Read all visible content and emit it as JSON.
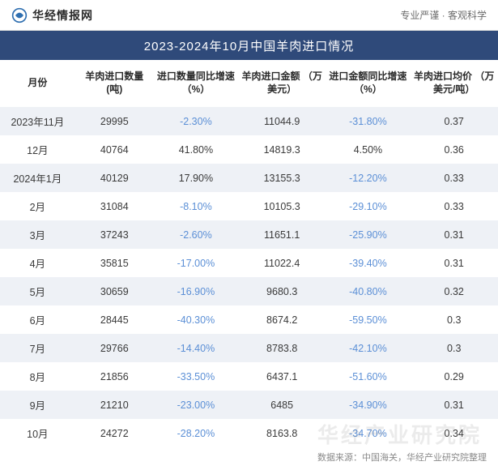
{
  "header": {
    "brand": "华经情报网",
    "tagline": "专业严谨 · 客观科学",
    "logo_colors": {
      "outer": "#2f6fb0",
      "inner": "#2f6fb0"
    }
  },
  "title": "2023-2024年10月中国羊肉进口情况",
  "columns": [
    "月份",
    "羊肉进口数量\n(吨)",
    "进口数量同比增速\n（%）",
    "羊肉进口金额\n（万美元）",
    "进口金额同比增速\n（%）",
    "羊肉进口均价\n（万美元/吨）"
  ],
  "rows": [
    {
      "month": "2023年11月",
      "qty": "29995",
      "qty_yoy": "-2.30%",
      "qty_yoy_neg": true,
      "amt": "11044.9",
      "amt_yoy": "-31.80%",
      "amt_yoy_neg": true,
      "price": "0.37"
    },
    {
      "month": "12月",
      "qty": "40764",
      "qty_yoy": "41.80%",
      "qty_yoy_neg": false,
      "amt": "14819.3",
      "amt_yoy": "4.50%",
      "amt_yoy_neg": false,
      "price": "0.36"
    },
    {
      "month": "2024年1月",
      "qty": "40129",
      "qty_yoy": "17.90%",
      "qty_yoy_neg": false,
      "amt": "13155.3",
      "amt_yoy": "-12.20%",
      "amt_yoy_neg": true,
      "price": "0.33"
    },
    {
      "month": "2月",
      "qty": "31084",
      "qty_yoy": "-8.10%",
      "qty_yoy_neg": true,
      "amt": "10105.3",
      "amt_yoy": "-29.10%",
      "amt_yoy_neg": true,
      "price": "0.33"
    },
    {
      "month": "3月",
      "qty": "37243",
      "qty_yoy": "-2.60%",
      "qty_yoy_neg": true,
      "amt": "11651.1",
      "amt_yoy": "-25.90%",
      "amt_yoy_neg": true,
      "price": "0.31"
    },
    {
      "month": "4月",
      "qty": "35815",
      "qty_yoy": "-17.00%",
      "qty_yoy_neg": true,
      "amt": "11022.4",
      "amt_yoy": "-39.40%",
      "amt_yoy_neg": true,
      "price": "0.31"
    },
    {
      "month": "5月",
      "qty": "30659",
      "qty_yoy": "-16.90%",
      "qty_yoy_neg": true,
      "amt": "9680.3",
      "amt_yoy": "-40.80%",
      "amt_yoy_neg": true,
      "price": "0.32"
    },
    {
      "month": "6月",
      "qty": "28445",
      "qty_yoy": "-40.30%",
      "qty_yoy_neg": true,
      "amt": "8674.2",
      "amt_yoy": "-59.50%",
      "amt_yoy_neg": true,
      "price": "0.3"
    },
    {
      "month": "7月",
      "qty": "29766",
      "qty_yoy": "-14.40%",
      "qty_yoy_neg": true,
      "amt": "8783.8",
      "amt_yoy": "-42.10%",
      "amt_yoy_neg": true,
      "price": "0.3"
    },
    {
      "month": "8月",
      "qty": "21856",
      "qty_yoy": "-33.50%",
      "qty_yoy_neg": true,
      "amt": "6437.1",
      "amt_yoy": "-51.60%",
      "amt_yoy_neg": true,
      "price": "0.29"
    },
    {
      "month": "9月",
      "qty": "21210",
      "qty_yoy": "-23.00%",
      "qty_yoy_neg": true,
      "amt": "6485",
      "amt_yoy": "-34.90%",
      "amt_yoy_neg": true,
      "price": "0.31"
    },
    {
      "month": "10月",
      "qty": "24272",
      "qty_yoy": "-28.20%",
      "qty_yoy_neg": true,
      "amt": "8163.8",
      "amt_yoy": "-34.70%",
      "amt_yoy_neg": true,
      "price": "0.34"
    }
  ],
  "source": "数据来源：中国海关，华经产业研究院整理",
  "watermark": "华经产业研究院",
  "styles": {
    "title_bg": "#2f4a7a",
    "title_fg": "#ffffff",
    "alt_row_bg": "#eef1f6",
    "negative_color": "#5b8fd6",
    "text_color": "#3a3a3a",
    "header_border": "#d8d8d8",
    "font_family": "Microsoft YaHei"
  }
}
